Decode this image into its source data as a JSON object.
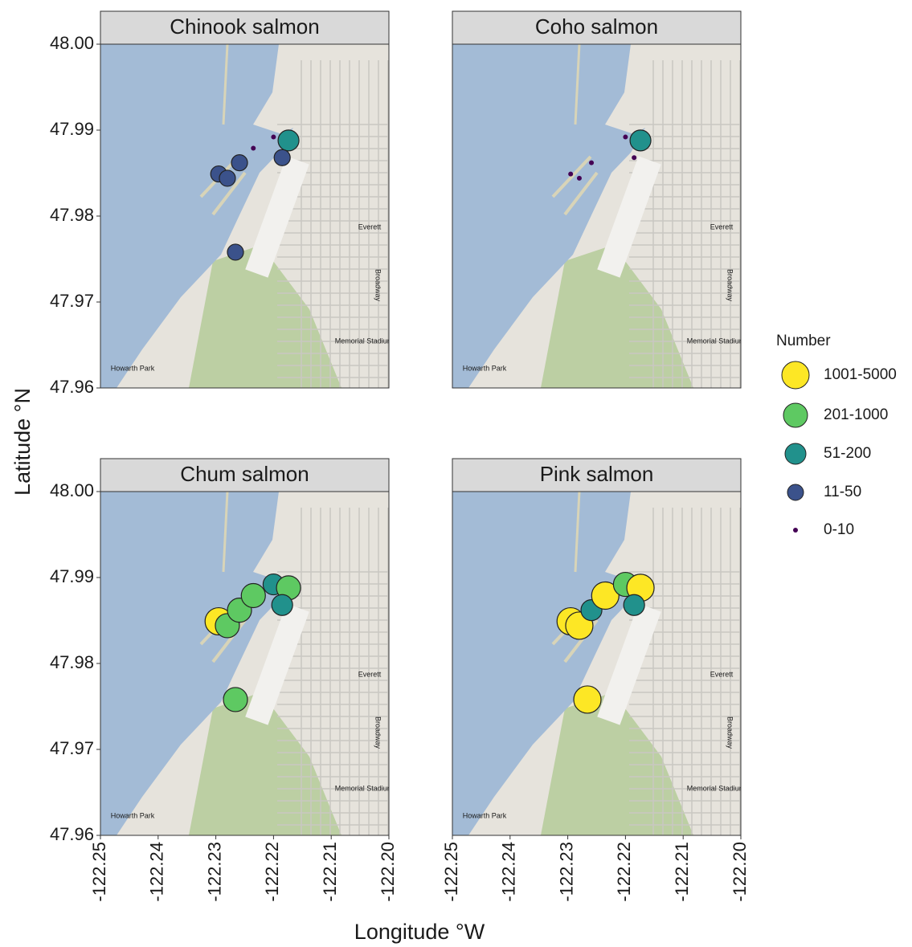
{
  "xlabel": "Longitude °W",
  "ylabel": "Latitude °N",
  "legend": {
    "title": "Number",
    "classes": [
      {
        "label": "1001-5000",
        "color": "#fde725"
      },
      {
        "label": "201-1000",
        "color": "#5ec962"
      },
      {
        "label": "51-200",
        "color": "#21918c"
      },
      {
        "label": "11-50",
        "color": "#3b528b"
      },
      {
        "label": "0-10",
        "color": "#440154"
      }
    ]
  },
  "map_labels": [
    "Everett",
    "Broadway",
    "Memorial Stadium",
    "Howarth Park"
  ],
  "chart_data": [
    {
      "type": "scatter",
      "title": "Chinook salmon",
      "x": [
        -122.2295,
        -122.228,
        -122.2259,
        -122.2235,
        -122.22,
        -122.2174,
        -122.2185,
        -122.2266
      ],
      "y": [
        47.9849,
        47.9844,
        47.9862,
        47.9879,
        47.9892,
        47.9888,
        47.9868,
        47.9758
      ],
      "classes": [
        "11-50",
        "11-50",
        "11-50",
        "0-10",
        "0-10",
        "51-200",
        "11-50",
        "11-50"
      ],
      "xlim": [
        -122.25,
        -122.2
      ],
      "ylim": [
        47.96,
        48.0
      ],
      "yticks": [
        47.96,
        47.97,
        47.98,
        47.99,
        {
          "value": 48,
          "label": "48.00"
        }
      ]
    },
    {
      "type": "scatter",
      "title": "Coho salmon",
      "x": [
        -122.2295,
        -122.228,
        -122.2259,
        -122.22,
        -122.2174,
        -122.2185
      ],
      "y": [
        47.9849,
        47.9844,
        47.9862,
        47.9892,
        47.9888,
        47.9868
      ],
      "classes": [
        "0-10",
        "0-10",
        "0-10",
        "0-10",
        "51-200",
        "0-10"
      ],
      "xlim": [
        -122.25,
        -122.2
      ],
      "ylim": [
        47.96,
        48.0
      ]
    },
    {
      "type": "scatter",
      "title": "Chum salmon",
      "x": [
        -122.2295,
        -122.228,
        -122.2259,
        -122.2235,
        -122.22,
        -122.2174,
        -122.2185,
        -122.2266
      ],
      "y": [
        47.9849,
        47.9844,
        47.9862,
        47.9879,
        47.9892,
        47.9888,
        47.9868,
        47.9758
      ],
      "classes": [
        "1001-5000",
        "201-1000",
        "201-1000",
        "201-1000",
        "51-200",
        "201-1000",
        "51-200",
        "201-1000"
      ],
      "xlim": [
        -122.25,
        -122.2
      ],
      "ylim": [
        47.96,
        48.0
      ],
      "xticks": [
        -122.25,
        -122.24,
        -122.23,
        -122.22,
        -122.21,
        {
          "value": -122.2,
          "label": "-122.20"
        }
      ],
      "yticks": [
        47.96,
        47.97,
        47.98,
        47.99,
        {
          "value": 48,
          "label": "48.00"
        }
      ]
    },
    {
      "type": "scatter",
      "title": "Pink salmon",
      "x": [
        -122.2295,
        -122.228,
        -122.2259,
        -122.2235,
        -122.22,
        -122.2174,
        -122.2185,
        -122.2266
      ],
      "y": [
        47.9849,
        47.9844,
        47.9862,
        47.9879,
        47.9892,
        47.9888,
        47.9868,
        47.9758
      ],
      "classes": [
        "1001-5000",
        "1001-5000",
        "51-200",
        "1001-5000",
        "201-1000",
        "1001-5000",
        "51-200",
        "1001-5000"
      ],
      "xlim": [
        -122.25,
        -122.2
      ],
      "ylim": [
        47.96,
        48.0
      ],
      "xticks": [
        -122.25,
        -122.24,
        -122.23,
        -122.22,
        -122.21,
        {
          "value": -122.2,
          "label": "-122.20"
        }
      ]
    }
  ]
}
